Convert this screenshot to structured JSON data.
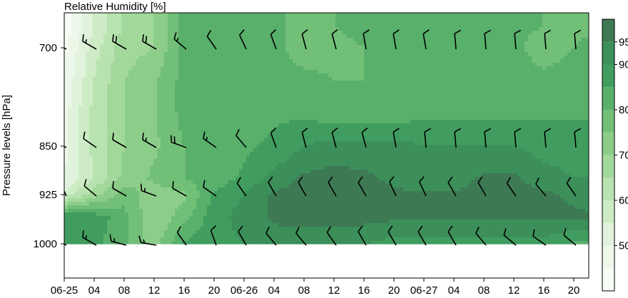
{
  "chart_data": {
    "type": "heatmap",
    "title": "Relative Humidity [%]",
    "ylabel": "Pressure levels [hPa]",
    "xlabel": "",
    "x_tick_labels": [
      "06-25",
      "04",
      "08",
      "12",
      "16",
      "20",
      "06-26",
      "04",
      "08",
      "12",
      "16",
      "20",
      "06-27",
      "04",
      "08",
      "12",
      "16",
      "20"
    ],
    "x_tick_hours": [
      0,
      4,
      8,
      12,
      16,
      20,
      24,
      28,
      32,
      36,
      40,
      44,
      48,
      52,
      56,
      60,
      64,
      68
    ],
    "xlim_hours": [
      0,
      70
    ],
    "y_tick_labels": [
      "700",
      "850",
      "925",
      "1000"
    ],
    "y_ticks_hpa": [
      700,
      850,
      925,
      1000
    ],
    "ylim_hpa": [
      1050,
      660
    ],
    "colorbar": {
      "levels": [
        40,
        45,
        50,
        55,
        60,
        65,
        70,
        75,
        80,
        85,
        90,
        95,
        100
      ],
      "tick_labels": [
        "50",
        "60",
        "70",
        "80",
        "90",
        "95"
      ],
      "ticks": [
        50,
        60,
        70,
        80,
        90,
        95
      ],
      "colors": [
        "#f7fcf5",
        "#edf8ea",
        "#e1f3dc",
        "#cdecc5",
        "#b8e3b0",
        "#a2d99b",
        "#8ccd8a",
        "#72bf78",
        "#58b06b",
        "#419d5f",
        "#3c8f59",
        "#3d7a54"
      ]
    },
    "rh_grid_levels_hpa": [
      675,
      700,
      750,
      800,
      850,
      900,
      925,
      960,
      1000
    ],
    "rh_grid_hours": [
      0,
      4,
      8,
      12,
      16,
      20,
      24,
      28,
      32,
      36,
      40,
      44,
      48,
      52,
      56,
      60,
      64,
      68,
      70
    ],
    "rh_values": [
      [
        42,
        55,
        66,
        70,
        82,
        84,
        84,
        82,
        76,
        80,
        82,
        82,
        84,
        84,
        84,
        82,
        80,
        78,
        78
      ],
      [
        44,
        58,
        68,
        70,
        82,
        84,
        84,
        82,
        76,
        78,
        80,
        80,
        84,
        84,
        84,
        82,
        76,
        80,
        82
      ],
      [
        46,
        60,
        70,
        74,
        82,
        84,
        84,
        84,
        82,
        80,
        80,
        80,
        84,
        84,
        84,
        84,
        82,
        84,
        84
      ],
      [
        48,
        62,
        70,
        74,
        82,
        84,
        84,
        84,
        84,
        82,
        82,
        82,
        84,
        84,
        84,
        84,
        84,
        84,
        84
      ],
      [
        48,
        62,
        70,
        74,
        80,
        82,
        84,
        86,
        90,
        92,
        92,
        92,
        90,
        90,
        90,
        90,
        88,
        88,
        88
      ],
      [
        50,
        60,
        72,
        76,
        80,
        82,
        86,
        92,
        96,
        97,
        96,
        94,
        90,
        92,
        96,
        96,
        92,
        90,
        90
      ],
      [
        56,
        68,
        78,
        72,
        74,
        86,
        90,
        96,
        97,
        97,
        97,
        96,
        96,
        96,
        97,
        97,
        96,
        94,
        92
      ],
      [
        90,
        88,
        82,
        70,
        78,
        88,
        92,
        96,
        97,
        97,
        97,
        96,
        96,
        96,
        96,
        96,
        96,
        96,
        96
      ],
      [
        86,
        86,
        82,
        72,
        86,
        88,
        90,
        92,
        92,
        92,
        90,
        88,
        88,
        88,
        88,
        88,
        88,
        84,
        84
      ]
    ],
    "wind_barb_levels_hpa": [
      700,
      850,
      925,
      1000
    ],
    "wind_barb_hours": [
      0,
      4,
      8,
      12,
      16,
      20,
      24,
      28,
      32,
      36,
      40,
      44,
      48,
      52,
      56,
      60,
      64,
      68
    ],
    "wind_direction_deg": [
      [
        300,
        300,
        300,
        300,
        310,
        325,
        335,
        340,
        345,
        345,
        350,
        350,
        350,
        355,
        355,
        355,
        355,
        355
      ],
      [
        300,
        305,
        300,
        300,
        290,
        305,
        320,
        340,
        345,
        345,
        345,
        350,
        355,
        355,
        355,
        355,
        355,
        355
      ],
      [
        335,
        310,
        300,
        290,
        300,
        305,
        325,
        330,
        330,
        330,
        330,
        335,
        335,
        330,
        330,
        325,
        320,
        325
      ],
      [
        300,
        300,
        285,
        280,
        325,
        340,
        330,
        320,
        320,
        325,
        330,
        330,
        330,
        330,
        320,
        310,
        305,
        310
      ]
    ],
    "wind_speed_kt": [
      [
        10,
        15,
        20,
        20,
        15,
        10,
        10,
        10,
        10,
        10,
        10,
        10,
        10,
        10,
        10,
        10,
        10,
        10
      ],
      [
        10,
        10,
        10,
        15,
        20,
        15,
        10,
        10,
        10,
        10,
        10,
        10,
        10,
        10,
        10,
        10,
        10,
        10
      ],
      [
        10,
        10,
        10,
        15,
        10,
        10,
        10,
        10,
        10,
        10,
        10,
        10,
        10,
        10,
        10,
        10,
        10,
        10
      ],
      [
        10,
        15,
        15,
        15,
        10,
        10,
        10,
        10,
        10,
        10,
        10,
        10,
        10,
        10,
        10,
        10,
        10,
        10
      ]
    ]
  }
}
